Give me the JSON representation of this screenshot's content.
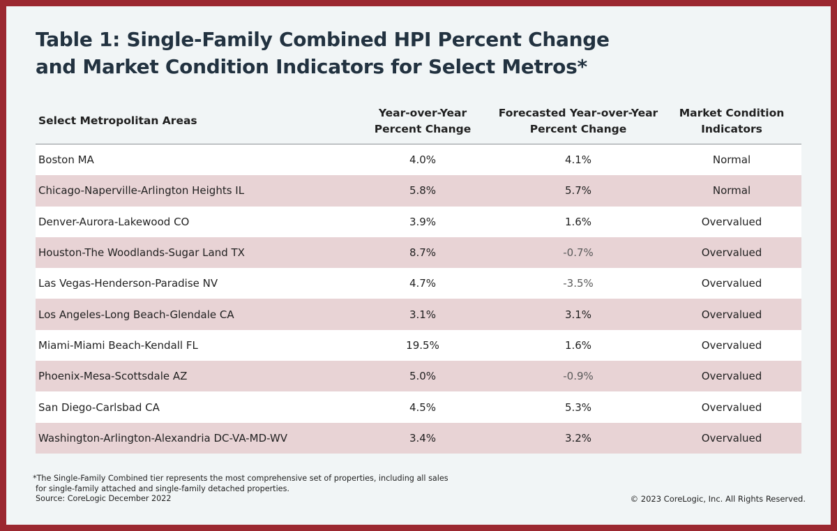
{
  "title_line1": "Table 1: Single-Family Combined HPI Percent Change",
  "title_line2": "and Market Condition Indicators for Select Metros*",
  "chart_data": {
    "type": "table",
    "columns": [
      "Select Metropolitan Areas",
      [
        "Year-over-Year",
        "Percent Change"
      ],
      [
        "Forecasted Year-over-Year",
        "Percent Change"
      ],
      [
        "Market Condition",
        "Indicators"
      ]
    ],
    "rows": [
      [
        "Boston MA",
        "4.0%",
        "4.1%",
        "Normal"
      ],
      [
        "Chicago-Naperville-Arlington Heights IL",
        "5.8%",
        "5.7%",
        "Normal"
      ],
      [
        "Denver-Aurora-Lakewood CO",
        "3.9%",
        "1.6%",
        "Overvalued"
      ],
      [
        "Houston-The Woodlands-Sugar Land TX",
        "8.7%",
        "-0.7%",
        "Overvalued"
      ],
      [
        "Las Vegas-Henderson-Paradise NV",
        "4.7%",
        "-3.5%",
        "Overvalued"
      ],
      [
        "Los Angeles-Long Beach-Glendale CA",
        "3.1%",
        "3.1%",
        "Overvalued"
      ],
      [
        "Miami-Miami Beach-Kendall FL",
        "19.5%",
        "1.6%",
        "Overvalued"
      ],
      [
        "Phoenix-Mesa-Scottsdale AZ",
        "5.0%",
        "-0.9%",
        "Overvalued"
      ],
      [
        "San Diego-Carlsbad CA",
        "4.5%",
        "5.3%",
        "Overvalued"
      ],
      [
        "Washington-Arlington-Alexandria DC-VA-MD-WV",
        "3.4%",
        "3.2%",
        "Overvalued"
      ]
    ]
  },
  "footnote": [
    "*The Single-Family Combined tier represents the most comprehensive set of properties, including all sales",
    "for single-family attached and single-family detached properties.",
    "Source: CoreLogic December 2022"
  ],
  "copyright": "© 2023 CoreLogic, Inc. All Rights Reserved.",
  "colors": {
    "border": "#9b2830",
    "background": "#f1f5f6",
    "row_alt": "#e8d3d5",
    "row_plain": "#ffffff",
    "title_text": "#223240"
  }
}
